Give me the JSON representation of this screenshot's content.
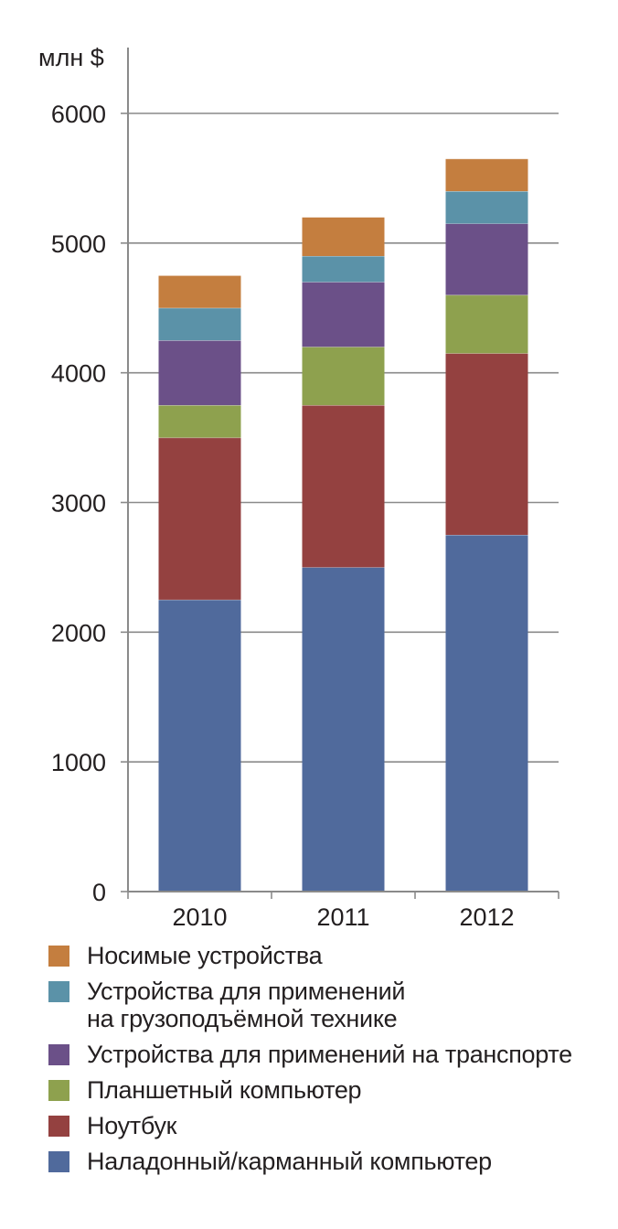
{
  "chart_data": {
    "type": "bar",
    "stacked": true,
    "unit_label": "млн $",
    "categories": [
      "2010",
      "2011",
      "2012"
    ],
    "ylim": [
      0,
      6000
    ],
    "yticks": [
      "0",
      "1000",
      "2000",
      "3000",
      "4000",
      "5000",
      "6000"
    ],
    "grid": true,
    "legend_position": "bottom",
    "series": [
      {
        "name": "Наладонный/карманный компьютер",
        "color": "#506a9c",
        "values": [
          2250,
          2500,
          2750
        ]
      },
      {
        "name": "Ноутбук",
        "color": "#944140",
        "values": [
          1250,
          1250,
          1400
        ]
      },
      {
        "name": "Планшетный компьютер",
        "color": "#8ea14e",
        "values": [
          250,
          450,
          450
        ]
      },
      {
        "name": "Устройства для применений на транспорте",
        "color": "#6b5088",
        "values": [
          500,
          500,
          550
        ]
      },
      {
        "name": "Устройства для применений\nна грузоподъёмной технике",
        "color": "#5b92a8",
        "values": [
          250,
          200,
          250
        ]
      },
      {
        "name": "Носимые устройства",
        "color": "#c47e3f",
        "values": [
          250,
          300,
          250
        ]
      }
    ]
  },
  "legend_order": [
    5,
    4,
    3,
    2,
    1,
    0
  ]
}
